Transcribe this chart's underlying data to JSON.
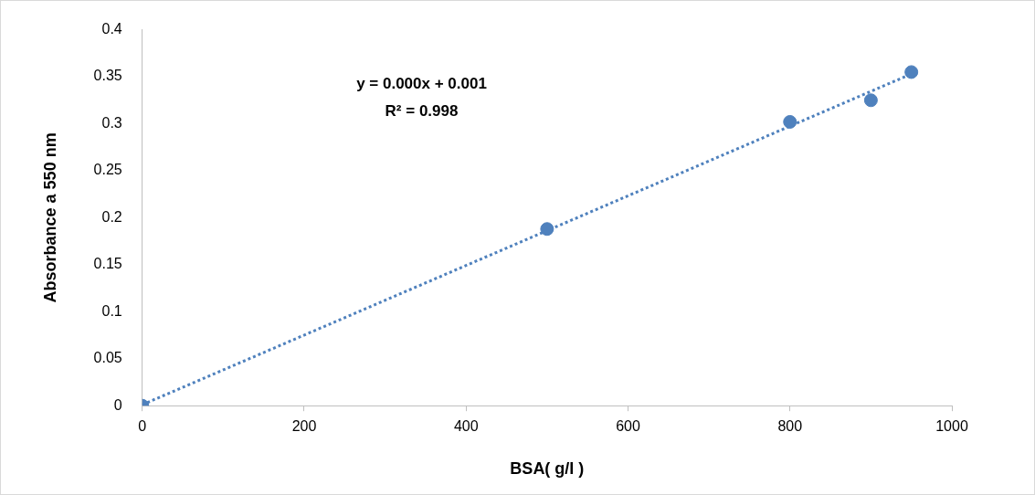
{
  "chart_data": {
    "type": "scatter",
    "xlabel": "BSA( g/l )",
    "ylabel": "Absorbance a 550 nm",
    "xlim": [
      0,
      1000
    ],
    "xticks": [
      0,
      200,
      400,
      600,
      800,
      1000
    ],
    "ylim": [
      0,
      0.4
    ],
    "yticks": [
      0,
      0.05,
      0.1,
      0.15,
      0.2,
      0.25,
      0.3,
      0.35,
      0.4
    ],
    "grid": false,
    "annotations": [
      "y = 0.000x + 0.001",
      "R² = 0.998"
    ],
    "series": [
      {
        "type": "scatter",
        "marker": "circle",
        "color": "#4f81bd",
        "x": [
          0,
          500,
          800,
          900,
          950
        ],
        "values": [
          0,
          0.188,
          0.302,
          0.325,
          0.355
        ]
      },
      {
        "type": "line",
        "color": "#4f81bd",
        "line_style": "dotted",
        "x": [
          0,
          950
        ],
        "values": [
          0.001,
          0.353
        ]
      }
    ]
  }
}
